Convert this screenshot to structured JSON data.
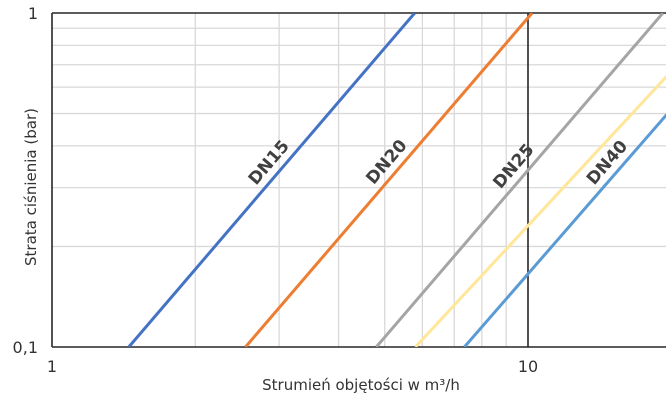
{
  "chart_data": {
    "type": "line",
    "title": "",
    "xlabel": "Strumień objętości w m³/h",
    "ylabel": "Strata ciśnienia (bar)",
    "x_scale": "log",
    "y_scale": "log",
    "xlim": [
      1,
      28
    ],
    "ylim": [
      0.1,
      1
    ],
    "x_tick_labels": [
      {
        "value": 1,
        "label": "1"
      },
      {
        "value": 10,
        "label": "10"
      }
    ],
    "y_tick_labels": [
      {
        "value": 0.1,
        "label": "0,1"
      },
      {
        "value": 1,
        "label": "1"
      }
    ],
    "x_minor_ticks": [
      2,
      3,
      4,
      5,
      6,
      7,
      8,
      9,
      20
    ],
    "y_minor_ticks": [
      0.2,
      0.3,
      0.4,
      0.5,
      0.6,
      0.7,
      0.8,
      0.9
    ],
    "grid": true,
    "legend": "none",
    "series": [
      {
        "name": "DN15",
        "color": "#4472C4",
        "x": [
          1.45,
          5.78
        ],
        "y": [
          0.1,
          1.0
        ],
        "label_at": 3.0
      },
      {
        "name": "DN20",
        "color": "#ED7D31",
        "x": [
          2.55,
          10.2
        ],
        "y": [
          0.1,
          1.0
        ],
        "label_at": 5.3
      },
      {
        "name": "DN25",
        "color": "#A5A5A5",
        "x": [
          4.8,
          19.2
        ],
        "y": [
          0.1,
          1.0
        ],
        "label_at": 9.8
      },
      {
        "name": "",
        "color": "#FFE699",
        "x": [
          5.8,
          26.0
        ],
        "y": [
          0.1,
          1.0
        ],
        "label_at": 12.0
      },
      {
        "name": "DN40",
        "color": "#5B9BD5",
        "x": [
          7.35,
          30.0
        ],
        "y": [
          0.1,
          1.0
        ],
        "label_at": 15.4
      }
    ]
  }
}
